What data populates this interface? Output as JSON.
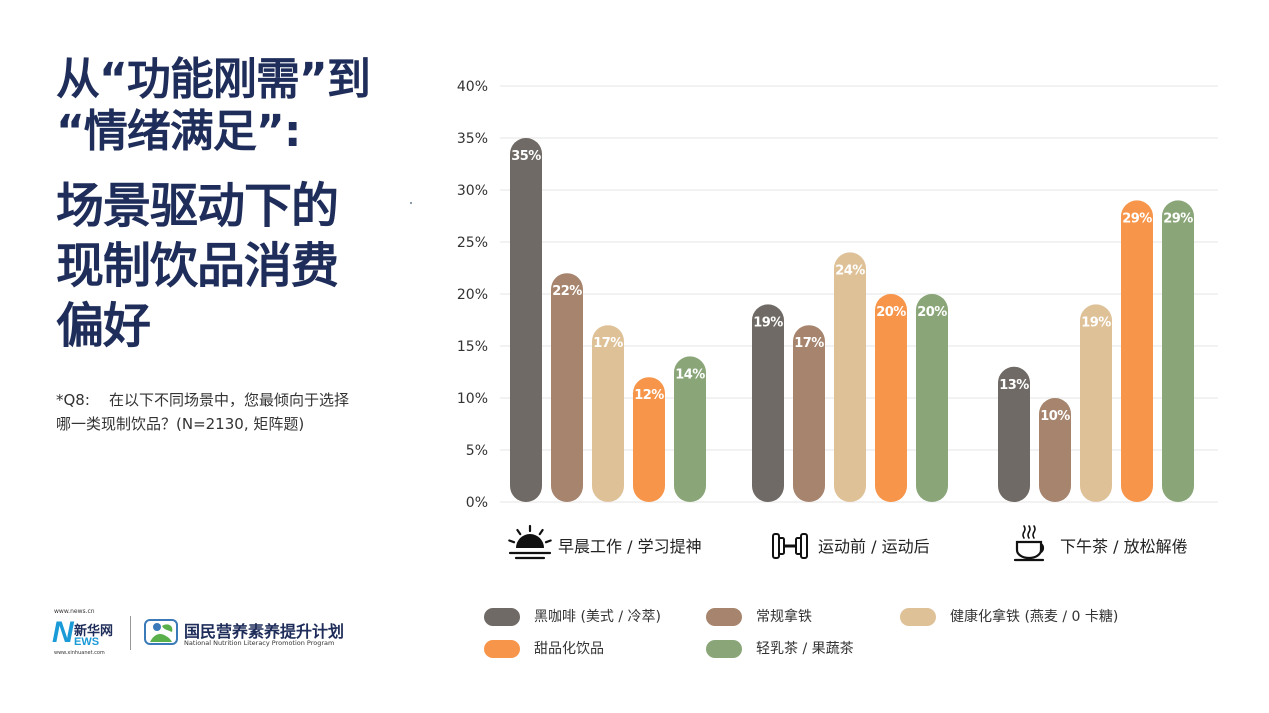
{
  "title": {
    "line1": "从“功能刚需”到",
    "line2": "“情绪满足”:",
    "line3": "场景驱动下的",
    "line4": "现制饮品消费",
    "line5": "偏好"
  },
  "note": {
    "line1": "*Q8:    在以下不同场景中，您最倾向于选择",
    "line2": "哪一类现制饮品？(N=2130, 矩阵题)"
  },
  "logos": {
    "news_site": "www.news.cn",
    "news_n": "N",
    "news_xinhua": "新华网",
    "news_ews": "EWS",
    "news_site2": "www.xinhuanet.com",
    "nn_cn": "国民营养素养提升计划",
    "nn_en": "National Nutrition Literacy Promotion Program"
  },
  "colors": {
    "title": "#1f2d5a",
    "black_coffee": "#6f6a65",
    "latte": "#a6846d",
    "healthy_latte": "#dfc198",
    "sweet": "#f7954a",
    "tea": "#8aa679"
  },
  "chart_data": {
    "type": "bar",
    "title": "",
    "xlabel": "",
    "ylabel": "",
    "ylim": [
      0,
      40
    ],
    "yticks": [
      "0%",
      "5%",
      "10%",
      "15%",
      "20%",
      "25%",
      "30%",
      "35%",
      "40%"
    ],
    "grid": true,
    "legend_position": "bottom",
    "categories": [
      {
        "label": "早晨工作 / 学习提神",
        "icon": "sunrise-icon"
      },
      {
        "label": "运动前 / 运动后",
        "icon": "dumbbell-icon"
      },
      {
        "label": "下午茶 / 放松解倦",
        "icon": "coffee-cup-icon"
      }
    ],
    "series": [
      {
        "name": "黑咖啡 (美式 / 冷萃)",
        "color": "#6f6a65",
        "values": [
          35,
          19,
          13
        ],
        "labels": [
          "35%",
          "19%",
          "13%"
        ]
      },
      {
        "name": "常规拿铁",
        "color": "#a6846d",
        "values": [
          22,
          17,
          10
        ],
        "labels": [
          "22%",
          "17%",
          "10%"
        ]
      },
      {
        "name": "健康化拿铁 (燕麦 / 0 卡糖)",
        "color": "#dfc198",
        "values": [
          17,
          24,
          19
        ],
        "labels": [
          "17%",
          "24%",
          "19%"
        ]
      },
      {
        "name": "甜品化饮品",
        "color": "#f7954a",
        "values": [
          12,
          20,
          29
        ],
        "labels": [
          "12%",
          "20%",
          "29%"
        ]
      },
      {
        "name": "轻乳茶 / 果蔬茶",
        "color": "#8aa679",
        "values": [
          14,
          20,
          29
        ],
        "labels": [
          "14%",
          "20%",
          "29%"
        ]
      }
    ]
  }
}
